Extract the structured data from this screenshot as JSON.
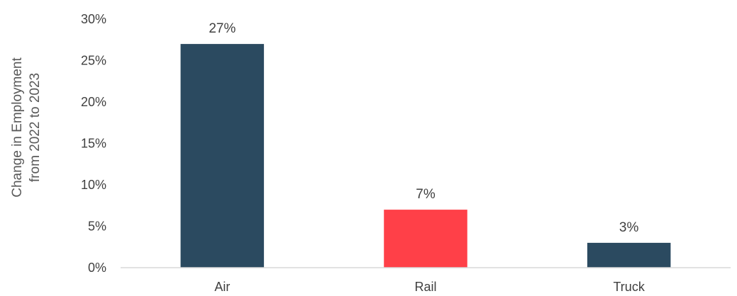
{
  "chart_data": {
    "type": "bar",
    "title": "",
    "xlabel": "",
    "ylabel_lines": [
      "Change in Employment",
      "from 2022 to 2023"
    ],
    "categories": [
      "Air",
      "Rail",
      "Truck"
    ],
    "values": [
      27,
      7,
      3
    ],
    "value_unit": "%",
    "data_labels": [
      "27%",
      "7%",
      "3%"
    ],
    "bar_colors": [
      "#2b4a60",
      "#ff4048",
      "#2b4a60"
    ],
    "ylim": [
      0,
      30
    ],
    "yticks": [
      0,
      5,
      10,
      15,
      20,
      25,
      30
    ],
    "ytick_labels": [
      "0%",
      "5%",
      "10%",
      "15%",
      "20%",
      "25%",
      "30%"
    ],
    "grid": false,
    "legend": "none"
  }
}
